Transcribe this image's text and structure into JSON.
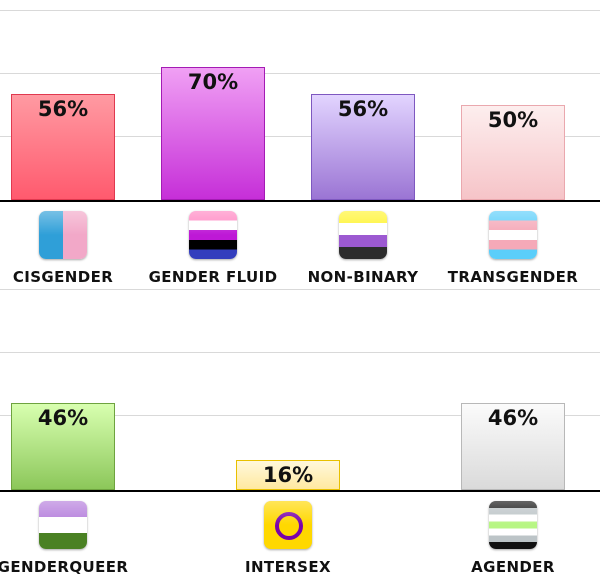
{
  "chart_data": [
    {
      "type": "bar",
      "title": "",
      "xlabel": "",
      "ylabel": "",
      "ylim": [
        0,
        100
      ],
      "categories": [
        "CISGENDER",
        "GENDER FLUID",
        "NON-BINARY",
        "TRANSGENDER"
      ],
      "values": [
        56,
        70,
        56,
        50
      ],
      "value_labels": [
        "56%",
        "70%",
        "56%",
        "50%"
      ],
      "flag_icons": [
        "cisgender-flag-icon",
        "genderfluid-flag-icon",
        "nonbinary-flag-icon",
        "transgender-flag-icon"
      ],
      "colors": [
        {
          "top": "#ff9aa2",
          "bottom": "#ff5a6e",
          "border": "#e0394f"
        },
        {
          "top": "#f0a0f4",
          "bottom": "#c62fd8",
          "border": "#a41bb4"
        },
        {
          "top": "#e2d4ff",
          "bottom": "#9b75d4",
          "border": "#7e58c0"
        },
        {
          "top": "#fdeeee",
          "bottom": "#f6c4c8",
          "border": "#eaa8ae"
        }
      ]
    },
    {
      "type": "bar",
      "title": "",
      "xlabel": "",
      "ylabel": "",
      "ylim": [
        0,
        100
      ],
      "categories": [
        "GENDERQUEER",
        "INTERSEX",
        "AGENDER"
      ],
      "values": [
        46,
        16,
        46
      ],
      "value_labels": [
        "46%",
        "16%",
        "46%"
      ],
      "flag_icons": [
        "genderqueer-flag-icon",
        "intersex-flag-icon",
        "agender-flag-icon"
      ],
      "colors": [
        {
          "top": "#d8ffb0",
          "bottom": "#8cc75a",
          "border": "#6ea33f"
        },
        {
          "top": "#fff8dc",
          "bottom": "#ffe9a0",
          "border": "#e8c000"
        },
        {
          "top": "#fbfbfb",
          "bottom": "#dadada",
          "border": "#b8b8b8"
        }
      ]
    }
  ]
}
